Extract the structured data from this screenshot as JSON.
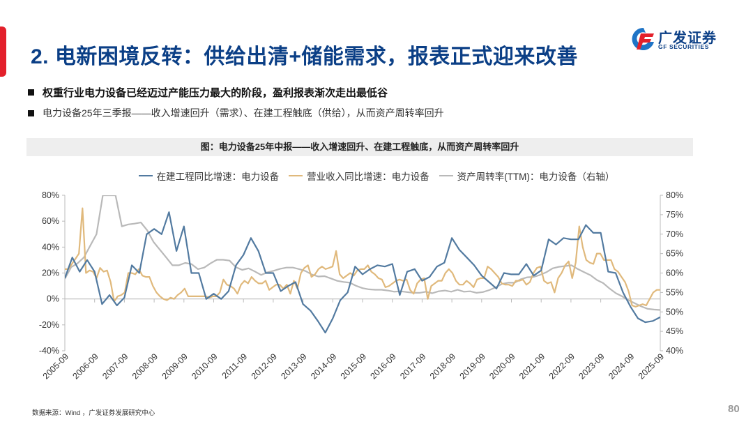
{
  "header": {
    "title": "2. 电新困境反转：供给出清+储能需求，报表正式迎来改善",
    "logo_cn": "广发证券",
    "logo_en": "GF SECURITIES"
  },
  "bullets": [
    "权重行业电力设备已经迈过产能压力最大的阶段，盈利报表渐次走出最低谷",
    "电力设备25年三季报——收入增速回升（需求）、在建工程触底（供给），从而资产周转率回升"
  ],
  "figure": {
    "caption": "图：电力设备25年中报——收入增速回升、在建工程触底，从而资产周转率回升"
  },
  "colors": {
    "title": "#0b3f86",
    "accent_red": "#e3202b",
    "series_cip": "#527aa0",
    "series_rev": "#e0b97c",
    "series_turnover": "#b9b9b9"
  },
  "footer": {
    "source": "数据来源：Wind ，广发证券发展研究中心",
    "page_number": "80"
  },
  "chart_data": {
    "type": "line",
    "title": "电力设备25年中报——收入增速回升、在建工程触底，从而资产周转率回升",
    "xlabel": "",
    "ylabel_left": "",
    "ylabel_right": "",
    "legend_position": "top",
    "grid": false,
    "left_axis": {
      "ylim": [
        -0.4,
        0.8
      ],
      "ticks": [
        "80%",
        "60%",
        "40%",
        "20%",
        "0%",
        "-20%",
        "-40%"
      ]
    },
    "right_axis": {
      "ylim": [
        0.4,
        0.8
      ],
      "ticks": [
        "80%",
        "75%",
        "70%",
        "65%",
        "60%",
        "55%",
        "50%",
        "45%",
        "40%"
      ]
    },
    "x_tick_labels": [
      "2005-09",
      "2006-09",
      "2007-09",
      "2008-09",
      "2009-09",
      "2010-09",
      "2011-09",
      "2012-09",
      "2013-09",
      "2014-09",
      "2015-09",
      "2016-09",
      "2017-09",
      "2018-09",
      "2019-09",
      "2020-09",
      "2021-09",
      "2022-09",
      "2023-09",
      "2024-09",
      "2025-09"
    ],
    "x_start": "2005-09",
    "x_step": "quarter",
    "series": [
      {
        "name": "在建工程同比增速：电力设备",
        "axis": "left",
        "values": [
          16,
          32,
          21,
          30,
          21,
          -4,
          3,
          -5,
          1,
          26,
          20,
          50,
          54,
          50,
          67,
          37,
          56,
          20,
          20,
          0,
          4,
          0,
          6,
          26,
          34,
          47,
          37,
          20,
          20,
          6,
          10,
          13,
          -4,
          -9,
          -17,
          -26,
          -15,
          -1,
          5,
          25,
          19,
          23,
          26,
          25,
          27,
          3,
          21,
          23,
          14,
          17,
          25,
          28,
          47,
          38,
          32,
          26,
          18,
          13,
          8,
          20,
          19,
          19,
          27,
          18,
          22,
          46,
          42,
          47,
          46,
          46,
          57,
          51,
          51,
          21,
          20,
          5,
          -6,
          -15,
          -18,
          -17,
          -14
        ]
      },
      {
        "name": "营业收入同比增速：电力设备",
        "axis": "left",
        "values": [
          23,
          23,
          27,
          31,
          35,
          70,
          20,
          22,
          21,
          16,
          24,
          21,
          22,
          13,
          -2,
          2,
          3,
          5,
          20,
          20,
          19,
          23,
          18,
          17,
          17,
          10,
          5,
          2,
          0,
          -1,
          1,
          0,
          3,
          5,
          8,
          2,
          2,
          2,
          2,
          2,
          2,
          1,
          2,
          2,
          5,
          15,
          11,
          10,
          8,
          4,
          11,
          14,
          12,
          17,
          14,
          12,
          12,
          14,
          7,
          9,
          11,
          11,
          8,
          11,
          4,
          14,
          8,
          20,
          24,
          26,
          17,
          19,
          23,
          25,
          23,
          24,
          25,
          37,
          19,
          16,
          18,
          20,
          18,
          22,
          23,
          23,
          26,
          21,
          19,
          16,
          15,
          9,
          10,
          12,
          14,
          15,
          14,
          15,
          7,
          4,
          12,
          15,
          16,
          0,
          10,
          12,
          14,
          14,
          20,
          23,
          20,
          14,
          11,
          11,
          14,
          12,
          9,
          15,
          16,
          16,
          25,
          23,
          20,
          17,
          12,
          11,
          11,
          10,
          14,
          14,
          15,
          11,
          13,
          20,
          24,
          25,
          14,
          12,
          13,
          5,
          16,
          20,
          26,
          29,
          16,
          28,
          56,
          40,
          30,
          28,
          27,
          35,
          35,
          30,
          30,
          30,
          23,
          21,
          17,
          13,
          6,
          -5,
          -6,
          -5,
          -4,
          -5,
          0,
          5,
          7,
          7
        ]
      },
      {
        "name": "资产周转率(TTM)：电力设备（右轴）",
        "axis": "right",
        "values": [
          0.585,
          0.615,
          0.625,
          0.64,
          0.67,
          0.7,
          0.8,
          0.8,
          0.8,
          0.72,
          0.725,
          0.727,
          0.73,
          0.71,
          0.68,
          0.66,
          0.64,
          0.62,
          0.62,
          0.626,
          0.623,
          0.61,
          0.614,
          0.625,
          0.634,
          0.634,
          0.632,
          0.615,
          0.608,
          0.612,
          0.604,
          0.595,
          0.602,
          0.606,
          0.611,
          0.614,
          0.614,
          0.61,
          0.605,
          0.596,
          0.591,
          0.592,
          0.586,
          0.58,
          0.577,
          0.575,
          0.567,
          0.561,
          0.558,
          0.557,
          0.557,
          0.555,
          0.552,
          0.553,
          0.551,
          0.549,
          0.549,
          0.552,
          0.548,
          0.553,
          0.555,
          0.552,
          0.557,
          0.552,
          0.553,
          0.549,
          0.551,
          0.556,
          0.563,
          0.572,
          0.575,
          0.575,
          0.584,
          0.589,
          0.59,
          0.595,
          0.602,
          0.612,
          0.616,
          0.618,
          0.62,
          0.61,
          0.602,
          0.594,
          0.582,
          0.574,
          0.56,
          0.548,
          0.54,
          0.53,
          0.522,
          0.514,
          0.508,
          0.506,
          0.505
        ]
      }
    ]
  }
}
